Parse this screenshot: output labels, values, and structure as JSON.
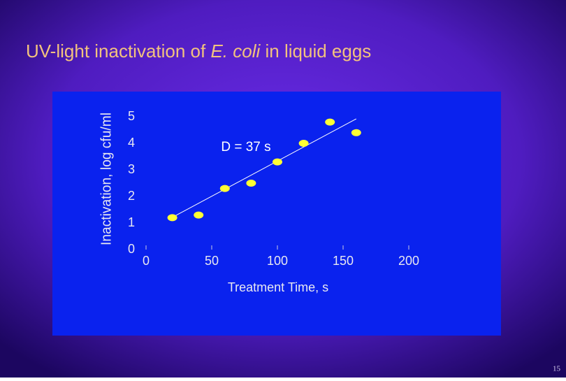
{
  "chart_data": {
    "type": "scatter",
    "title": [
      "UV-light inactivation of ",
      "E. coli",
      " in liquid eggs"
    ],
    "x_label": "Treatment Time, s",
    "y_label": "Inactivation, log cfu/ml",
    "annotation": "D = 37 s",
    "x": [
      20,
      40,
      60,
      80,
      100,
      120,
      140,
      160
    ],
    "values": [
      1.2,
      1.3,
      2.3,
      2.5,
      3.3,
      4.0,
      4.8,
      4.4
    ],
    "color": "#ffff33",
    "fit_line": {
      "x": [
        18,
        160
      ],
      "y": [
        1.16,
        4.92
      ],
      "color": "#ffffff"
    },
    "xlim": [
      0,
      200
    ],
    "xticks": [
      0,
      50,
      100,
      150,
      200
    ],
    "ylim": [
      0,
      5
    ],
    "yticks": [
      0,
      1,
      2,
      3,
      4,
      5
    ]
  },
  "page_number": 15
}
